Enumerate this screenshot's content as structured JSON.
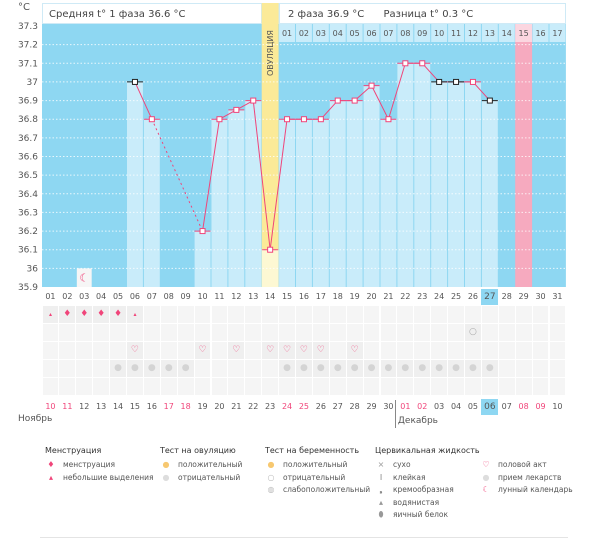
{
  "header": {
    "unit": "°C",
    "phase1": "Средняя t° 1 фаза 36.6 °C",
    "phase2": "2 фаза 36.9 °C",
    "diff": "Разница t° 0.3 °C",
    "ovulation": "ОВУЛЯЦИЯ"
  },
  "colors": {
    "bg_dark": "#8ed7f2",
    "bar": "#c9ecfa",
    "line": "#f0457a",
    "ovulation": "#fbea98",
    "ovulation_light": "#fdf8d3",
    "highlight_day": "#f6aabf",
    "today": "#8ed7f2"
  },
  "chart_data": {
    "type": "line",
    "ylim": [
      35.9,
      37.3
    ],
    "yticks": [
      "37.3",
      "37.2",
      "37.1",
      "37",
      "36.9",
      "36.8",
      "36.7",
      "36.6",
      "36.5",
      "36.4",
      "36.3",
      "36.2",
      "36.1",
      "36",
      "35.9"
    ],
    "days": [
      "01",
      "02",
      "03",
      "04",
      "05",
      "06",
      "07",
      "08",
      "09",
      "10",
      "11",
      "12",
      "13",
      "14",
      "15",
      "16",
      "17",
      "18",
      "19",
      "20",
      "21",
      "22",
      "23",
      "24",
      "25",
      "26",
      "27",
      "28",
      "29",
      "30",
      "31"
    ],
    "temps": [
      null,
      null,
      null,
      null,
      null,
      37.0,
      36.8,
      null,
      null,
      36.2,
      36.8,
      36.85,
      36.9,
      36.1,
      36.8,
      36.8,
      36.8,
      36.9,
      36.9,
      36.98,
      36.8,
      37.1,
      37.1,
      37.0,
      37.0,
      37.0,
      36.9,
      null,
      null,
      null,
      null
    ],
    "black_marker_days": [
      6,
      24,
      25,
      27
    ],
    "ovulation_day": 14,
    "phase2_labels": [
      "01",
      "02",
      "03",
      "04",
      "05",
      "06",
      "07",
      "08",
      "09",
      "10",
      "11",
      "12",
      "13",
      "14",
      "15",
      "16",
      "17"
    ],
    "highlight_day": 29
  },
  "rows": {
    "menstruation": {
      "1": "small",
      "2": "big",
      "3": "big",
      "4": "big",
      "5": "big",
      "6": "small"
    },
    "pregnancy_test": {
      "26": "negative"
    },
    "intercourse": [
      6,
      10,
      12,
      14,
      15,
      16,
      17,
      19
    ],
    "pills": [
      5,
      6,
      7,
      8,
      9,
      15,
      16,
      17,
      18,
      19,
      20,
      21,
      22,
      23,
      24,
      25,
      26,
      27
    ],
    "moon": [
      3
    ]
  },
  "calendar": {
    "dates": [
      "10",
      "11",
      "12",
      "13",
      "14",
      "15",
      "16",
      "17",
      "18",
      "19",
      "20",
      "21",
      "22",
      "23",
      "24",
      "25",
      "26",
      "27",
      "28",
      "29",
      "30",
      "01",
      "02",
      "03",
      "04",
      "05",
      "06",
      "07",
      "08",
      "09",
      "10"
    ],
    "red": [
      1,
      2,
      8,
      9,
      15,
      16,
      22,
      23,
      29,
      30
    ],
    "today_index": 27,
    "month1": "Ноябрь",
    "month2": "Декабрь"
  },
  "legend": [
    {
      "title": "Менструация",
      "items": [
        {
          "icon": "menstruation-icon",
          "label": "менструация"
        },
        {
          "icon": "spotting-icon",
          "label": "небольшие выделения"
        }
      ]
    },
    {
      "title": "Тест на овуляцию",
      "items": [
        {
          "icon": "ovulation-positive-icon",
          "label": "положительный"
        },
        {
          "icon": "ovulation-negative-icon",
          "label": "отрицательный"
        }
      ]
    },
    {
      "title": "Тест на беременность",
      "items": [
        {
          "icon": "pregnancy-positive-icon",
          "label": "положительный"
        },
        {
          "icon": "pregnancy-negative-icon",
          "label": "отрицательный"
        },
        {
          "icon": "pregnancy-weak-icon",
          "label": "слабоположительный"
        }
      ]
    },
    {
      "title": "Цервикальная жидкость",
      "items": [
        {
          "icon": "dry-icon",
          "label": "сухо"
        },
        {
          "icon": "sticky-icon",
          "label": "клейкая"
        },
        {
          "icon": "creamy-icon",
          "label": "кремообразная"
        },
        {
          "icon": "watery-icon",
          "label": "водянистая"
        },
        {
          "icon": "egg-white-icon",
          "label": "яичный белок"
        }
      ]
    },
    {
      "title": "",
      "items": [
        {
          "icon": "heart-icon",
          "label": "половой акт"
        },
        {
          "icon": "pill-icon",
          "label": "прием лекарств"
        },
        {
          "icon": "moon-icon",
          "label": "лунный календарь"
        }
      ]
    }
  ]
}
